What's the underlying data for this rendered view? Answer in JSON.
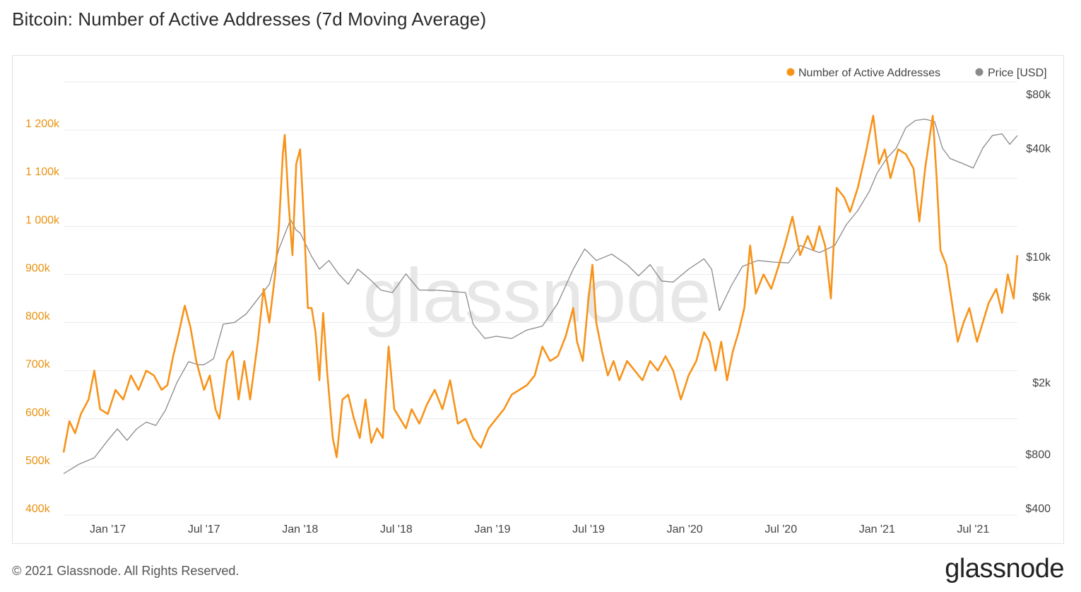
{
  "header": {
    "title": "Bitcoin: Number of Active Addresses (7d Moving Average)"
  },
  "footer": {
    "copyright": "© 2021 Glassnode. All Rights Reserved.",
    "logo": "glassnode"
  },
  "watermark": "glassnode",
  "colors": {
    "addresses": "#f7931a",
    "price": "#8a8a8a",
    "grid": "#ececec",
    "left_axis_text": "#e8920e"
  },
  "chart_data": {
    "type": "line",
    "title": "Bitcoin: Number of Active Addresses (7d Moving Average)",
    "legend": {
      "position": "top-right",
      "entries": [
        "Number of Active Addresses",
        "Price [USD]"
      ]
    },
    "x_ticks": [
      "Jan '17",
      "Jul '17",
      "Jan '18",
      "Jul '18",
      "Jan '19",
      "Jul '19",
      "Jan '20",
      "Jul '20",
      "Jan '21",
      "Jul '21"
    ],
    "x_tick_dates": [
      2017.0,
      2017.5,
      2018.0,
      2018.5,
      2019.0,
      2019.5,
      2020.0,
      2020.5,
      2021.0,
      2021.5
    ],
    "x_range": [
      2016.77,
      2021.73
    ],
    "y_left": {
      "label": "Number of Active Addresses",
      "range": [
        400000,
        1300000
      ],
      "ticks": [
        400000,
        500000,
        600000,
        700000,
        800000,
        900000,
        1000000,
        1100000,
        1200000
      ],
      "tick_labels": [
        "400k",
        "500k",
        "600k",
        "700k",
        "800k",
        "900k",
        "1 000k",
        "1 100k",
        "1 200k"
      ]
    },
    "y_right": {
      "label": "Price [USD]",
      "scale": "log",
      "ticks": [
        400,
        800,
        2000,
        6000,
        10000,
        40000,
        80000
      ],
      "tick_labels": [
        "$400",
        "$800",
        "$2k",
        "$6k",
        "$10k",
        "$40k",
        "$80k"
      ]
    },
    "series": [
      {
        "name": "Number of Active Addresses",
        "axis": "left",
        "points": [
          [
            2016.77,
            530000
          ],
          [
            2016.8,
            595000
          ],
          [
            2016.83,
            570000
          ],
          [
            2016.86,
            610000
          ],
          [
            2016.9,
            640000
          ],
          [
            2016.93,
            700000
          ],
          [
            2016.96,
            620000
          ],
          [
            2017.0,
            610000
          ],
          [
            2017.04,
            660000
          ],
          [
            2017.08,
            640000
          ],
          [
            2017.12,
            690000
          ],
          [
            2017.16,
            660000
          ],
          [
            2017.2,
            700000
          ],
          [
            2017.24,
            690000
          ],
          [
            2017.28,
            660000
          ],
          [
            2017.31,
            670000
          ],
          [
            2017.34,
            730000
          ],
          [
            2017.37,
            780000
          ],
          [
            2017.4,
            835000
          ],
          [
            2017.43,
            790000
          ],
          [
            2017.46,
            720000
          ],
          [
            2017.5,
            660000
          ],
          [
            2017.53,
            690000
          ],
          [
            2017.56,
            620000
          ],
          [
            2017.58,
            600000
          ],
          [
            2017.62,
            720000
          ],
          [
            2017.65,
            740000
          ],
          [
            2017.68,
            640000
          ],
          [
            2017.71,
            720000
          ],
          [
            2017.74,
            640000
          ],
          [
            2017.78,
            760000
          ],
          [
            2017.81,
            870000
          ],
          [
            2017.84,
            800000
          ],
          [
            2017.87,
            900000
          ],
          [
            2017.89,
            1000000
          ],
          [
            2017.91,
            1150000
          ],
          [
            2017.92,
            1190000
          ],
          [
            2017.94,
            1050000
          ],
          [
            2017.96,
            940000
          ],
          [
            2017.98,
            1130000
          ],
          [
            2018.0,
            1160000
          ],
          [
            2018.02,
            1010000
          ],
          [
            2018.04,
            830000
          ],
          [
            2018.06,
            830000
          ],
          [
            2018.08,
            780000
          ],
          [
            2018.1,
            680000
          ],
          [
            2018.12,
            820000
          ],
          [
            2018.14,
            700000
          ],
          [
            2018.17,
            560000
          ],
          [
            2018.19,
            520000
          ],
          [
            2018.22,
            640000
          ],
          [
            2018.25,
            650000
          ],
          [
            2018.28,
            600000
          ],
          [
            2018.31,
            560000
          ],
          [
            2018.34,
            640000
          ],
          [
            2018.37,
            550000
          ],
          [
            2018.4,
            580000
          ],
          [
            2018.43,
            560000
          ],
          [
            2018.46,
            750000
          ],
          [
            2018.49,
            620000
          ],
          [
            2018.52,
            600000
          ],
          [
            2018.55,
            580000
          ],
          [
            2018.58,
            620000
          ],
          [
            2018.62,
            590000
          ],
          [
            2018.66,
            630000
          ],
          [
            2018.7,
            660000
          ],
          [
            2018.74,
            620000
          ],
          [
            2018.78,
            680000
          ],
          [
            2018.82,
            590000
          ],
          [
            2018.86,
            600000
          ],
          [
            2018.9,
            560000
          ],
          [
            2018.94,
            540000
          ],
          [
            2018.98,
            580000
          ],
          [
            2019.02,
            600000
          ],
          [
            2019.06,
            620000
          ],
          [
            2019.1,
            650000
          ],
          [
            2019.14,
            660000
          ],
          [
            2019.18,
            670000
          ],
          [
            2019.22,
            690000
          ],
          [
            2019.26,
            750000
          ],
          [
            2019.3,
            720000
          ],
          [
            2019.34,
            730000
          ],
          [
            2019.38,
            770000
          ],
          [
            2019.42,
            830000
          ],
          [
            2019.44,
            760000
          ],
          [
            2019.47,
            720000
          ],
          [
            2019.5,
            850000
          ],
          [
            2019.52,
            920000
          ],
          [
            2019.54,
            800000
          ],
          [
            2019.57,
            740000
          ],
          [
            2019.6,
            690000
          ],
          [
            2019.63,
            720000
          ],
          [
            2019.66,
            680000
          ],
          [
            2019.7,
            720000
          ],
          [
            2019.74,
            700000
          ],
          [
            2019.78,
            680000
          ],
          [
            2019.82,
            720000
          ],
          [
            2019.86,
            700000
          ],
          [
            2019.9,
            730000
          ],
          [
            2019.94,
            700000
          ],
          [
            2019.98,
            640000
          ],
          [
            2020.02,
            690000
          ],
          [
            2020.06,
            720000
          ],
          [
            2020.1,
            780000
          ],
          [
            2020.13,
            760000
          ],
          [
            2020.16,
            700000
          ],
          [
            2020.19,
            760000
          ],
          [
            2020.22,
            680000
          ],
          [
            2020.25,
            740000
          ],
          [
            2020.28,
            780000
          ],
          [
            2020.31,
            830000
          ],
          [
            2020.34,
            960000
          ],
          [
            2020.37,
            860000
          ],
          [
            2020.41,
            900000
          ],
          [
            2020.45,
            870000
          ],
          [
            2020.49,
            920000
          ],
          [
            2020.52,
            960000
          ],
          [
            2020.56,
            1020000
          ],
          [
            2020.6,
            940000
          ],
          [
            2020.64,
            980000
          ],
          [
            2020.67,
            950000
          ],
          [
            2020.7,
            1000000
          ],
          [
            2020.73,
            960000
          ],
          [
            2020.76,
            850000
          ],
          [
            2020.79,
            1080000
          ],
          [
            2020.83,
            1060000
          ],
          [
            2020.86,
            1030000
          ],
          [
            2020.9,
            1080000
          ],
          [
            2020.94,
            1150000
          ],
          [
            2020.98,
            1230000
          ],
          [
            2021.01,
            1130000
          ],
          [
            2021.04,
            1160000
          ],
          [
            2021.07,
            1100000
          ],
          [
            2021.11,
            1160000
          ],
          [
            2021.15,
            1150000
          ],
          [
            2021.19,
            1120000
          ],
          [
            2021.22,
            1010000
          ],
          [
            2021.25,
            1120000
          ],
          [
            2021.29,
            1230000
          ],
          [
            2021.31,
            1100000
          ],
          [
            2021.33,
            950000
          ],
          [
            2021.36,
            920000
          ],
          [
            2021.39,
            840000
          ],
          [
            2021.42,
            760000
          ],
          [
            2021.45,
            800000
          ],
          [
            2021.48,
            830000
          ],
          [
            2021.52,
            760000
          ],
          [
            2021.55,
            800000
          ],
          [
            2021.58,
            840000
          ],
          [
            2021.62,
            870000
          ],
          [
            2021.65,
            820000
          ],
          [
            2021.68,
            900000
          ],
          [
            2021.71,
            850000
          ],
          [
            2021.73,
            940000
          ]
        ]
      },
      {
        "name": "Price [USD]",
        "axis": "right",
        "points": [
          [
            2016.77,
            620
          ],
          [
            2016.85,
            700
          ],
          [
            2016.93,
            760
          ],
          [
            2017.0,
            950
          ],
          [
            2017.05,
            1100
          ],
          [
            2017.1,
            950
          ],
          [
            2017.15,
            1100
          ],
          [
            2017.2,
            1200
          ],
          [
            2017.25,
            1150
          ],
          [
            2017.3,
            1400
          ],
          [
            2017.36,
            2000
          ],
          [
            2017.42,
            2600
          ],
          [
            2017.47,
            2500
          ],
          [
            2017.5,
            2500
          ],
          [
            2017.55,
            2700
          ],
          [
            2017.6,
            4200
          ],
          [
            2017.66,
            4300
          ],
          [
            2017.72,
            4800
          ],
          [
            2017.78,
            5800
          ],
          [
            2017.84,
            7000
          ],
          [
            2017.89,
            11000
          ],
          [
            2017.95,
            16000
          ],
          [
            2017.98,
            14000
          ],
          [
            2018.0,
            13500
          ],
          [
            2018.06,
            10000
          ],
          [
            2018.1,
            8500
          ],
          [
            2018.15,
            9500
          ],
          [
            2018.2,
            8000
          ],
          [
            2018.25,
            7000
          ],
          [
            2018.3,
            8500
          ],
          [
            2018.36,
            7500
          ],
          [
            2018.42,
            6500
          ],
          [
            2018.48,
            6300
          ],
          [
            2018.55,
            8000
          ],
          [
            2018.62,
            6500
          ],
          [
            2018.7,
            6500
          ],
          [
            2018.78,
            6400
          ],
          [
            2018.86,
            6300
          ],
          [
            2018.9,
            4200
          ],
          [
            2018.96,
            3500
          ],
          [
            2019.02,
            3600
          ],
          [
            2019.1,
            3500
          ],
          [
            2019.18,
            3900
          ],
          [
            2019.26,
            4100
          ],
          [
            2019.34,
            5500
          ],
          [
            2019.42,
            8500
          ],
          [
            2019.48,
            11000
          ],
          [
            2019.54,
            9500
          ],
          [
            2019.62,
            10300
          ],
          [
            2019.7,
            9000
          ],
          [
            2019.76,
            7800
          ],
          [
            2019.82,
            9000
          ],
          [
            2019.88,
            7300
          ],
          [
            2019.94,
            7200
          ],
          [
            2020.02,
            8500
          ],
          [
            2020.1,
            9700
          ],
          [
            2020.14,
            8500
          ],
          [
            2020.18,
            5000
          ],
          [
            2020.24,
            6800
          ],
          [
            2020.3,
            8800
          ],
          [
            2020.38,
            9500
          ],
          [
            2020.46,
            9300
          ],
          [
            2020.54,
            9200
          ],
          [
            2020.6,
            11500
          ],
          [
            2020.7,
            10500
          ],
          [
            2020.78,
            11500
          ],
          [
            2020.84,
            15000
          ],
          [
            2020.9,
            18000
          ],
          [
            2020.96,
            23000
          ],
          [
            2021.0,
            29000
          ],
          [
            2021.05,
            35000
          ],
          [
            2021.1,
            40000
          ],
          [
            2021.15,
            52000
          ],
          [
            2021.2,
            57000
          ],
          [
            2021.25,
            58000
          ],
          [
            2021.3,
            56000
          ],
          [
            2021.34,
            40000
          ],
          [
            2021.38,
            35000
          ],
          [
            2021.44,
            33000
          ],
          [
            2021.5,
            31000
          ],
          [
            2021.55,
            40000
          ],
          [
            2021.6,
            47000
          ],
          [
            2021.65,
            48000
          ],
          [
            2021.69,
            42000
          ],
          [
            2021.73,
            47000
          ]
        ]
      }
    ]
  }
}
